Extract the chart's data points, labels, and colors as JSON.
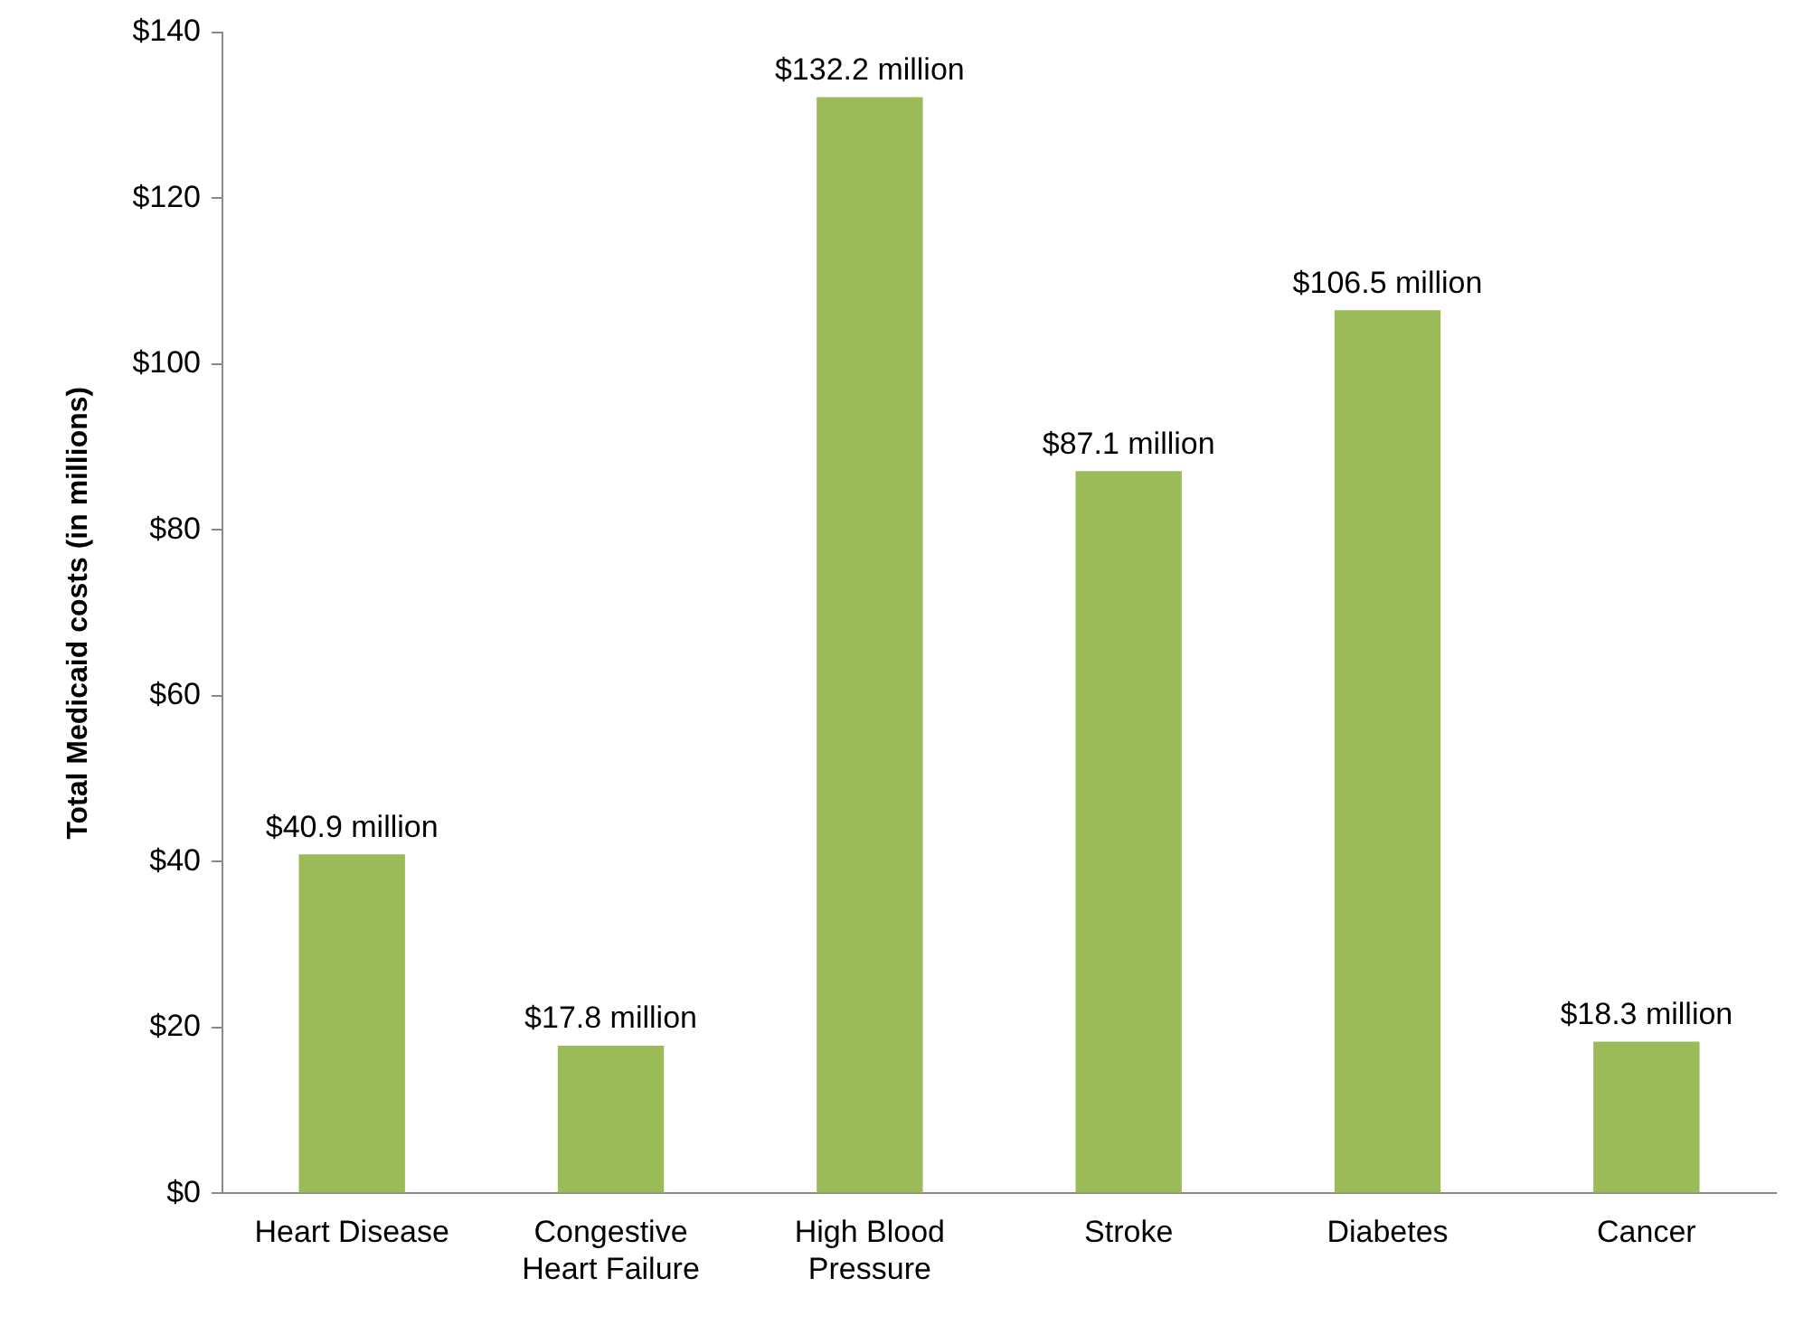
{
  "chart_data": {
    "type": "bar",
    "ylabel": "Total Medicaid costs (in millions)",
    "categories": [
      "Heart Disease",
      "Congestive Heart Failure",
      "High Blood Pressure",
      "Stroke",
      "Diabetes",
      "Cancer"
    ],
    "values": [
      40.9,
      17.8,
      132.2,
      87.1,
      106.5,
      18.3
    ],
    "value_labels": [
      "$40.9 million",
      "$17.8 million",
      "$132.2 million",
      "$87.1 million",
      "$106.5 million",
      "$18.3 million"
    ],
    "color": "#9bbb59",
    "ylim": [
      0,
      140
    ],
    "yticks": [
      {
        "value": 0,
        "label": "$0"
      },
      {
        "value": 20,
        "label": "$20"
      },
      {
        "value": 40,
        "label": "$40"
      },
      {
        "value": 60,
        "label": "$60"
      },
      {
        "value": 80,
        "label": "$80"
      },
      {
        "value": 100,
        "label": "$100"
      },
      {
        "value": 120,
        "label": "$120"
      },
      {
        "value": 140,
        "label": "$140"
      }
    ],
    "grid": false,
    "legend": false
  }
}
